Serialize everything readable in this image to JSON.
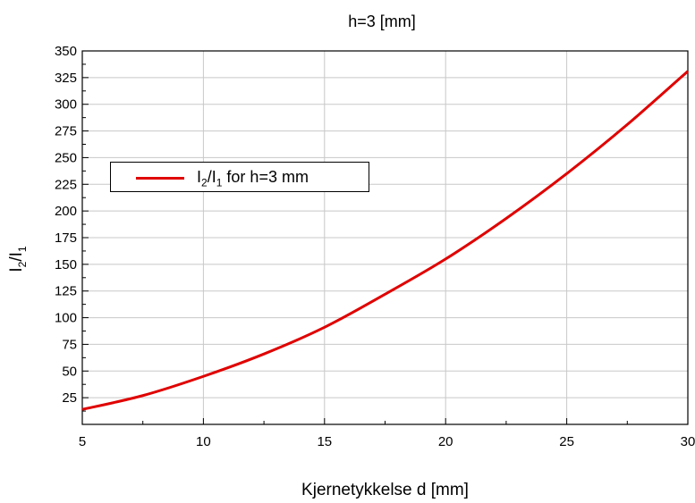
{
  "chart_data": {
    "type": "line",
    "title": "h=3 [mm]",
    "xlabel": "Kjernetykkelse d  [mm]",
    "ylabel": {
      "base1": "I",
      "sub1": "2",
      "sep": "/",
      "base2": "I",
      "sub2": "1"
    },
    "xlim": [
      5,
      30
    ],
    "ylim": [
      0,
      350
    ],
    "xticks": [
      "5",
      "10",
      "15",
      "20",
      "25",
      "30"
    ],
    "yticks": [
      "25",
      "50",
      "75",
      "100",
      "125",
      "150",
      "175",
      "200",
      "225",
      "250",
      "275",
      "300",
      "325",
      "350"
    ],
    "grid": true,
    "legend_position": "upper-left",
    "series": [
      {
        "name": {
          "base1": "I",
          "sub1": "2",
          "sep": "/",
          "base2": "I",
          "sub2": "1",
          "rest": " for h=3 mm"
        },
        "color": "#e00000",
        "x": [
          5,
          7.5,
          10,
          12.5,
          15,
          17.5,
          20,
          22.5,
          25,
          27.5,
          30
        ],
        "y": [
          14,
          27,
          45,
          66,
          91,
          122,
          155,
          193,
          235,
          281,
          331
        ]
      }
    ]
  }
}
